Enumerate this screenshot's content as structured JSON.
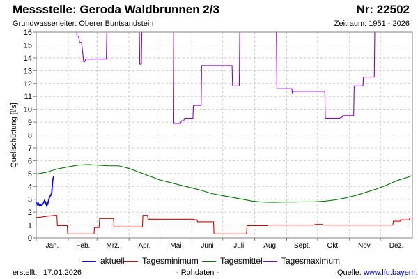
{
  "header": {
    "title": "Messstelle: Geroda Waldbrunnen 2/3",
    "number": "Nr: 22502",
    "aquifer": "Grundwasserleiter:   Oberer Buntsandstein",
    "period": "Zeitraum: 1951 - 2026"
  },
  "footer": {
    "created_label": "erstellt:",
    "created_value": "17.01.2026",
    "rawdata": "- Rohdaten -",
    "source_label": "Quelle:",
    "source_link": "www.lfu.bayern.de"
  },
  "colors": {
    "aktuell": "#0000ff",
    "min": "#dd0000",
    "mittel": "#007700",
    "max": "#8800cc",
    "grid": "#c8c8c8"
  },
  "chart_data": {
    "type": "line",
    "ylabel": "Quellschüttung [l/s]",
    "xlabel": "",
    "ylim": [
      0,
      16
    ],
    "yticks": [
      0,
      1,
      2,
      3,
      4,
      5,
      6,
      7,
      8,
      9,
      10,
      11,
      12,
      13,
      14,
      15,
      16
    ],
    "xlim": [
      0,
      365
    ],
    "months": [
      {
        "label": "Jan.",
        "center": 15.5
      },
      {
        "label": "Feb.",
        "center": 45.5
      },
      {
        "label": "Mrz.",
        "center": 74.5
      },
      {
        "label": "Apr.",
        "center": 105
      },
      {
        "label": "Mai",
        "center": 135.5
      },
      {
        "label": "Juni",
        "center": 166
      },
      {
        "label": "Juli",
        "center": 196.5
      },
      {
        "label": "Aug.",
        "center": 227.5
      },
      {
        "label": "Sept.",
        "center": 258
      },
      {
        "label": "Okt.",
        "center": 288.5
      },
      {
        "label": "Nov.",
        "center": 319
      },
      {
        "label": "Dez.",
        "center": 349.5
      }
    ],
    "month_starts": [
      0,
      31,
      59,
      90,
      120,
      151,
      181,
      212,
      243,
      273,
      304,
      334
    ],
    "grid": true,
    "legend_position": "bottom",
    "series": [
      {
        "name": "aktuell",
        "key": "aktuell",
        "points": [
          [
            0,
            2.8
          ],
          [
            1,
            2.6
          ],
          [
            2,
            2.7
          ],
          [
            3,
            2.5
          ],
          [
            4,
            2.6
          ],
          [
            5,
            2.5
          ],
          [
            6,
            2.6
          ],
          [
            7,
            2.7
          ],
          [
            8,
            2.9
          ],
          [
            9,
            2.8
          ],
          [
            10,
            2.5
          ],
          [
            11,
            2.6
          ],
          [
            12,
            2.9
          ],
          [
            13,
            3.2
          ],
          [
            14,
            3.3
          ],
          [
            15,
            3.5
          ],
          [
            16,
            4.5
          ],
          [
            17,
            4.8
          ]
        ]
      },
      {
        "name": "Tagesminimum",
        "key": "min",
        "points": [
          [
            0,
            1.6
          ],
          [
            4,
            1.6
          ],
          [
            7,
            1.65
          ],
          [
            12,
            1.7
          ],
          [
            18,
            1.75
          ],
          [
            20,
            1.75
          ],
          [
            20.5,
            0.95
          ],
          [
            30,
            0.95
          ],
          [
            30.5,
            0.3
          ],
          [
            56,
            0.3
          ],
          [
            56.5,
            0.8
          ],
          [
            61,
            0.8
          ],
          [
            61.5,
            1.5
          ],
          [
            75,
            1.5
          ],
          [
            75.5,
            0.85
          ],
          [
            103,
            0.85
          ],
          [
            103.5,
            1.75
          ],
          [
            108,
            1.75
          ],
          [
            108.5,
            1.45
          ],
          [
            153,
            1.45
          ],
          [
            153.5,
            1.4
          ],
          [
            156,
            1.4
          ],
          [
            156.5,
            1.25
          ],
          [
            172,
            1.25
          ],
          [
            172.5,
            0.3
          ],
          [
            204,
            0.3
          ],
          [
            204.5,
            0.95
          ],
          [
            224,
            0.95
          ],
          [
            224.5,
            1.0
          ],
          [
            244,
            1.0
          ],
          [
            270,
            1.0
          ],
          [
            270.5,
            1.05
          ],
          [
            278,
            1.05
          ],
          [
            278.5,
            1.0
          ],
          [
            346,
            1.0
          ],
          [
            346.5,
            1.3
          ],
          [
            353,
            1.3
          ],
          [
            353.5,
            1.4
          ],
          [
            362,
            1.4
          ],
          [
            362.5,
            1.55
          ],
          [
            365,
            1.55
          ]
        ]
      },
      {
        "name": "Tagesmittel",
        "key": "mittel",
        "points": [
          [
            0,
            4.95
          ],
          [
            10,
            5.1
          ],
          [
            20,
            5.35
          ],
          [
            30,
            5.5
          ],
          [
            40,
            5.65
          ],
          [
            50,
            5.7
          ],
          [
            60,
            5.65
          ],
          [
            70,
            5.6
          ],
          [
            80,
            5.6
          ],
          [
            90,
            5.4
          ],
          [
            100,
            5.1
          ],
          [
            110,
            4.8
          ],
          [
            120,
            4.5
          ],
          [
            130,
            4.3
          ],
          [
            140,
            4.1
          ],
          [
            150,
            3.9
          ],
          [
            160,
            3.7
          ],
          [
            170,
            3.45
          ],
          [
            180,
            3.3
          ],
          [
            190,
            3.15
          ],
          [
            200,
            3.0
          ],
          [
            210,
            2.85
          ],
          [
            220,
            2.78
          ],
          [
            230,
            2.76
          ],
          [
            240,
            2.78
          ],
          [
            250,
            2.78
          ],
          [
            260,
            2.8
          ],
          [
            270,
            2.8
          ],
          [
            280,
            2.85
          ],
          [
            290,
            2.95
          ],
          [
            300,
            3.1
          ],
          [
            310,
            3.3
          ],
          [
            320,
            3.55
          ],
          [
            330,
            3.8
          ],
          [
            340,
            4.1
          ],
          [
            350,
            4.45
          ],
          [
            360,
            4.7
          ],
          [
            365,
            4.85
          ]
        ]
      },
      {
        "name": "Tagesmaximum",
        "key": "max",
        "points": [
          [
            39,
            16.2
          ],
          [
            39.5,
            15.7
          ],
          [
            41,
            15.7
          ],
          [
            42,
            15.2
          ],
          [
            44,
            15.2
          ],
          [
            46,
            13.7
          ],
          [
            47,
            13.7
          ],
          [
            48,
            13.9
          ],
          [
            68,
            13.9
          ],
          [
            68.5,
            16.2
          ],
          [
            100,
            16.2
          ],
          [
            100.5,
            13.5
          ],
          [
            102,
            13.5
          ],
          [
            102.5,
            16.2
          ],
          [
            133,
            16.2
          ],
          [
            133.5,
            8.9
          ],
          [
            140,
            8.9
          ],
          [
            141,
            9.1
          ],
          [
            143,
            9.1
          ],
          [
            144,
            9.3
          ],
          [
            152,
            9.3
          ],
          [
            152.5,
            10.3
          ],
          [
            160,
            10.3
          ],
          [
            160.5,
            13.4
          ],
          [
            190,
            13.4
          ],
          [
            190.5,
            11.8
          ],
          [
            197,
            11.8
          ],
          [
            197.5,
            16.2
          ],
          [
            233,
            16.2
          ],
          [
            233.5,
            11.6
          ],
          [
            248,
            11.6
          ],
          [
            248.5,
            11.2
          ],
          [
            249,
            11.4
          ],
          [
            280,
            11.4
          ],
          [
            280.5,
            9.3
          ],
          [
            294,
            9.3
          ],
          [
            297,
            9.4
          ],
          [
            297.5,
            9.5
          ],
          [
            308,
            9.5
          ],
          [
            308.5,
            11.8
          ],
          [
            317,
            11.8
          ],
          [
            317.5,
            12.5
          ],
          [
            328,
            12.5
          ],
          [
            328.5,
            16.2
          ]
        ]
      }
    ]
  }
}
